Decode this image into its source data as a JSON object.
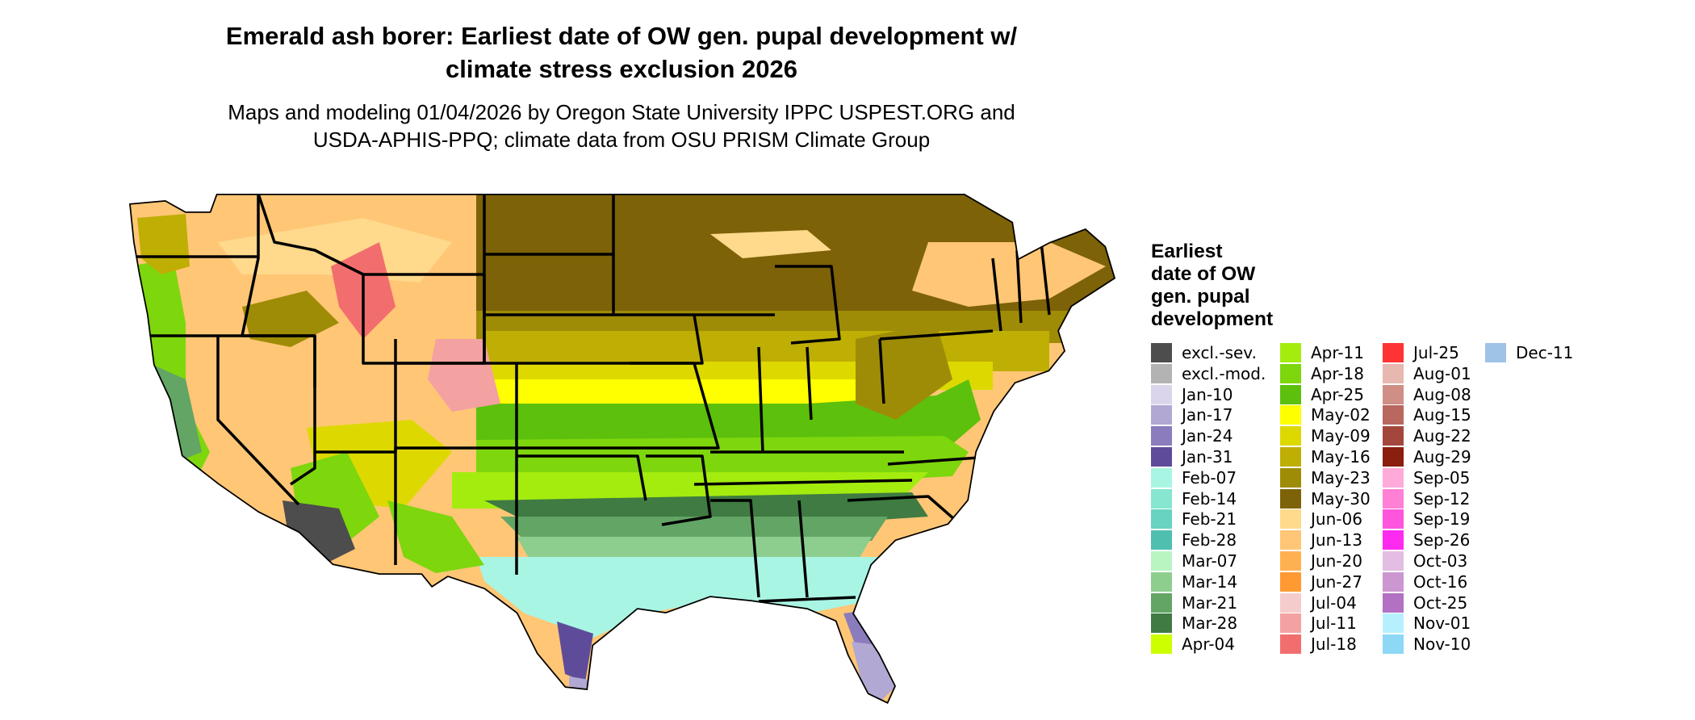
{
  "title": {
    "line1": "Emerald ash borer: Earliest date of OW gen. pupal development w/",
    "line2": "climate stress exclusion 2026"
  },
  "subtitle": {
    "line1": "Maps and modeling 01/04/2026 by Oregon State University IPPC USPEST.ORG and",
    "line2": "USDA-APHIS-PPQ; climate data from OSU PRISM Climate Group"
  },
  "legend": {
    "title_lines": [
      "Earliest",
      "date of OW",
      "gen. pupal",
      "development"
    ],
    "columns": [
      [
        {
          "label": "excl.-sev.",
          "color": "#4d4d4d"
        },
        {
          "label": "excl.-mod.",
          "color": "#b3b3b3"
        },
        {
          "label": "Jan-10",
          "color": "#dad5ea"
        },
        {
          "label": "Jan-17",
          "color": "#b1a8d4"
        },
        {
          "label": "Jan-24",
          "color": "#8a7cbd"
        },
        {
          "label": "Jan-31",
          "color": "#5e4c9b"
        },
        {
          "label": "Feb-07",
          "color": "#a9f5e4"
        },
        {
          "label": "Feb-14",
          "color": "#86e6d0"
        },
        {
          "label": "Feb-21",
          "color": "#68d3c0"
        },
        {
          "label": "Feb-28",
          "color": "#4fbfb0"
        },
        {
          "label": "Mar-07",
          "color": "#b8f5c0"
        },
        {
          "label": "Mar-14",
          "color": "#8dce8f"
        },
        {
          "label": "Mar-21",
          "color": "#62a565"
        },
        {
          "label": "Mar-28",
          "color": "#3f7b42"
        },
        {
          "label": "Apr-04",
          "color": "#ccff00"
        }
      ],
      [
        {
          "label": "Apr-11",
          "color": "#a3ec0e"
        },
        {
          "label": "Apr-18",
          "color": "#7ed60d"
        },
        {
          "label": "Apr-25",
          "color": "#5cc00c"
        },
        {
          "label": "May-02",
          "color": "#ffff00"
        },
        {
          "label": "May-09",
          "color": "#ddd900"
        },
        {
          "label": "May-16",
          "color": "#bfae03"
        },
        {
          "label": "May-23",
          "color": "#9f8c06"
        },
        {
          "label": "May-30",
          "color": "#7d6208"
        },
        {
          "label": "Jun-06",
          "color": "#ffd98c"
        },
        {
          "label": "Jun-13",
          "color": "#ffc675"
        },
        {
          "label": "Jun-20",
          "color": "#ffb152"
        },
        {
          "label": "Jun-27",
          "color": "#ff9a33"
        },
        {
          "label": "Jul-04",
          "color": "#f5cccc"
        },
        {
          "label": "Jul-11",
          "color": "#f3a1a1"
        },
        {
          "label": "Jul-18",
          "color": "#f26e6e"
        }
      ],
      [
        {
          "label": "Jul-25",
          "color": "#ff3333"
        },
        {
          "label": "Aug-01",
          "color": "#e6b8b0"
        },
        {
          "label": "Aug-08",
          "color": "#cf8f86"
        },
        {
          "label": "Aug-15",
          "color": "#b8685f"
        },
        {
          "label": "Aug-22",
          "color": "#a3473c"
        },
        {
          "label": "Aug-29",
          "color": "#8a1e0f"
        },
        {
          "label": "Sep-05",
          "color": "#ffaad9"
        },
        {
          "label": "Sep-12",
          "color": "#ff80d5"
        },
        {
          "label": "Sep-19",
          "color": "#ff55dd"
        },
        {
          "label": "Sep-26",
          "color": "#ff2af0"
        },
        {
          "label": "Oct-03",
          "color": "#e4bde3"
        },
        {
          "label": "Oct-16",
          "color": "#cc96d0"
        },
        {
          "label": "Oct-25",
          "color": "#b271c2"
        },
        {
          "label": "Nov-01",
          "color": "#b6f0ff"
        },
        {
          "label": "Nov-10",
          "color": "#8cd8f5"
        }
      ],
      [
        {
          "label": "Dec-11",
          "color": "#9fc2e7"
        }
      ]
    ]
  }
}
